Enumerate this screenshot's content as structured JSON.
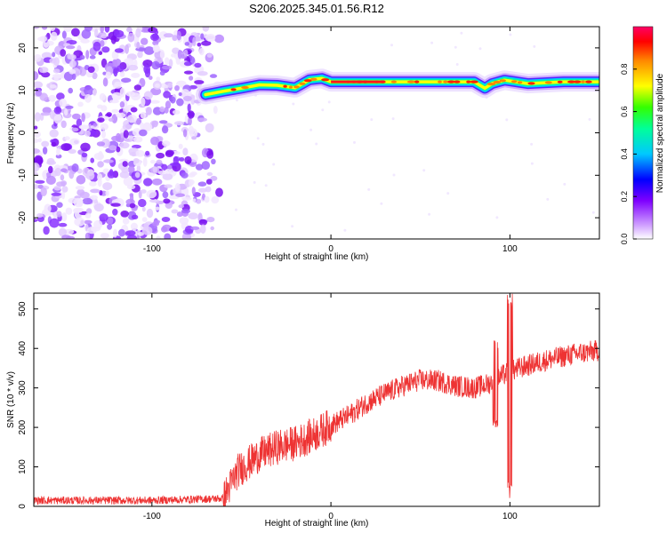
{
  "title": "S206.2025.345.01.56.R12",
  "chart_data": [
    {
      "type": "heatmap",
      "xlabel": "Height of straight line (km)",
      "ylabel": "Frequency (Hz)",
      "xlim": [
        -166,
        150
      ],
      "ylim": [
        -25,
        25
      ],
      "x_ticks": [
        -100,
        0,
        100
      ],
      "y_ticks": [
        -20,
        -10,
        0,
        10,
        20
      ],
      "colorbar": {
        "label": "Normalized spectral amplitude",
        "range": [
          0,
          1
        ],
        "ticks": [
          0,
          0.2,
          0.4,
          0.6,
          0.8
        ]
      },
      "ridge": [
        {
          "x": -70,
          "y": 9.0
        },
        {
          "x": -60,
          "y": 9.8
        },
        {
          "x": -50,
          "y": 10.5
        },
        {
          "x": -40,
          "y": 11.3
        },
        {
          "x": -30,
          "y": 11.2
        },
        {
          "x": -20,
          "y": 10.6
        },
        {
          "x": -12,
          "y": 12.5
        },
        {
          "x": -5,
          "y": 12.8
        },
        {
          "x": 0,
          "y": 12.0
        },
        {
          "x": 20,
          "y": 12.0
        },
        {
          "x": 50,
          "y": 12.0
        },
        {
          "x": 80,
          "y": 12.0
        },
        {
          "x": 86,
          "y": 10.5
        },
        {
          "x": 90,
          "y": 11.6
        },
        {
          "x": 97,
          "y": 12.4
        },
        {
          "x": 110,
          "y": 11.6
        },
        {
          "x": 130,
          "y": 12.0
        },
        {
          "x": 150,
          "y": 12.0
        }
      ],
      "noise_region_x": [
        -166,
        -62
      ]
    },
    {
      "type": "line",
      "xlabel": "Height of straight line (km)",
      "ylabel": "SNR (10 * v/v)",
      "xlim": [
        -166,
        150
      ],
      "ylim": [
        0,
        540
      ],
      "x_ticks": [
        -100,
        0,
        100
      ],
      "y_ticks": [
        0,
        100,
        200,
        300,
        400,
        500
      ],
      "series": [
        {
          "color": "#ee3333",
          "trend": [
            [
              -166,
              15
            ],
            [
              -100,
              15
            ],
            [
              -60,
              20
            ],
            [
              -52,
              90
            ],
            [
              -40,
              130
            ],
            [
              -30,
              150
            ],
            [
              -20,
              160
            ],
            [
              -10,
              180
            ],
            [
              0,
              205
            ],
            [
              10,
              230
            ],
            [
              20,
              262
            ],
            [
              30,
              285
            ],
            [
              40,
              305
            ],
            [
              50,
              320
            ],
            [
              60,
              318
            ],
            [
              70,
              305
            ],
            [
              80,
              300
            ],
            [
              88,
              310
            ],
            [
              95,
              330
            ],
            [
              105,
              350
            ],
            [
              120,
              370
            ],
            [
              135,
              385
            ],
            [
              150,
              395
            ]
          ],
          "spikes": [
            {
              "x": 100,
              "max": 540,
              "min": 20
            },
            {
              "x": 92,
              "max": 440,
              "min": 200
            }
          ]
        }
      ]
    }
  ]
}
